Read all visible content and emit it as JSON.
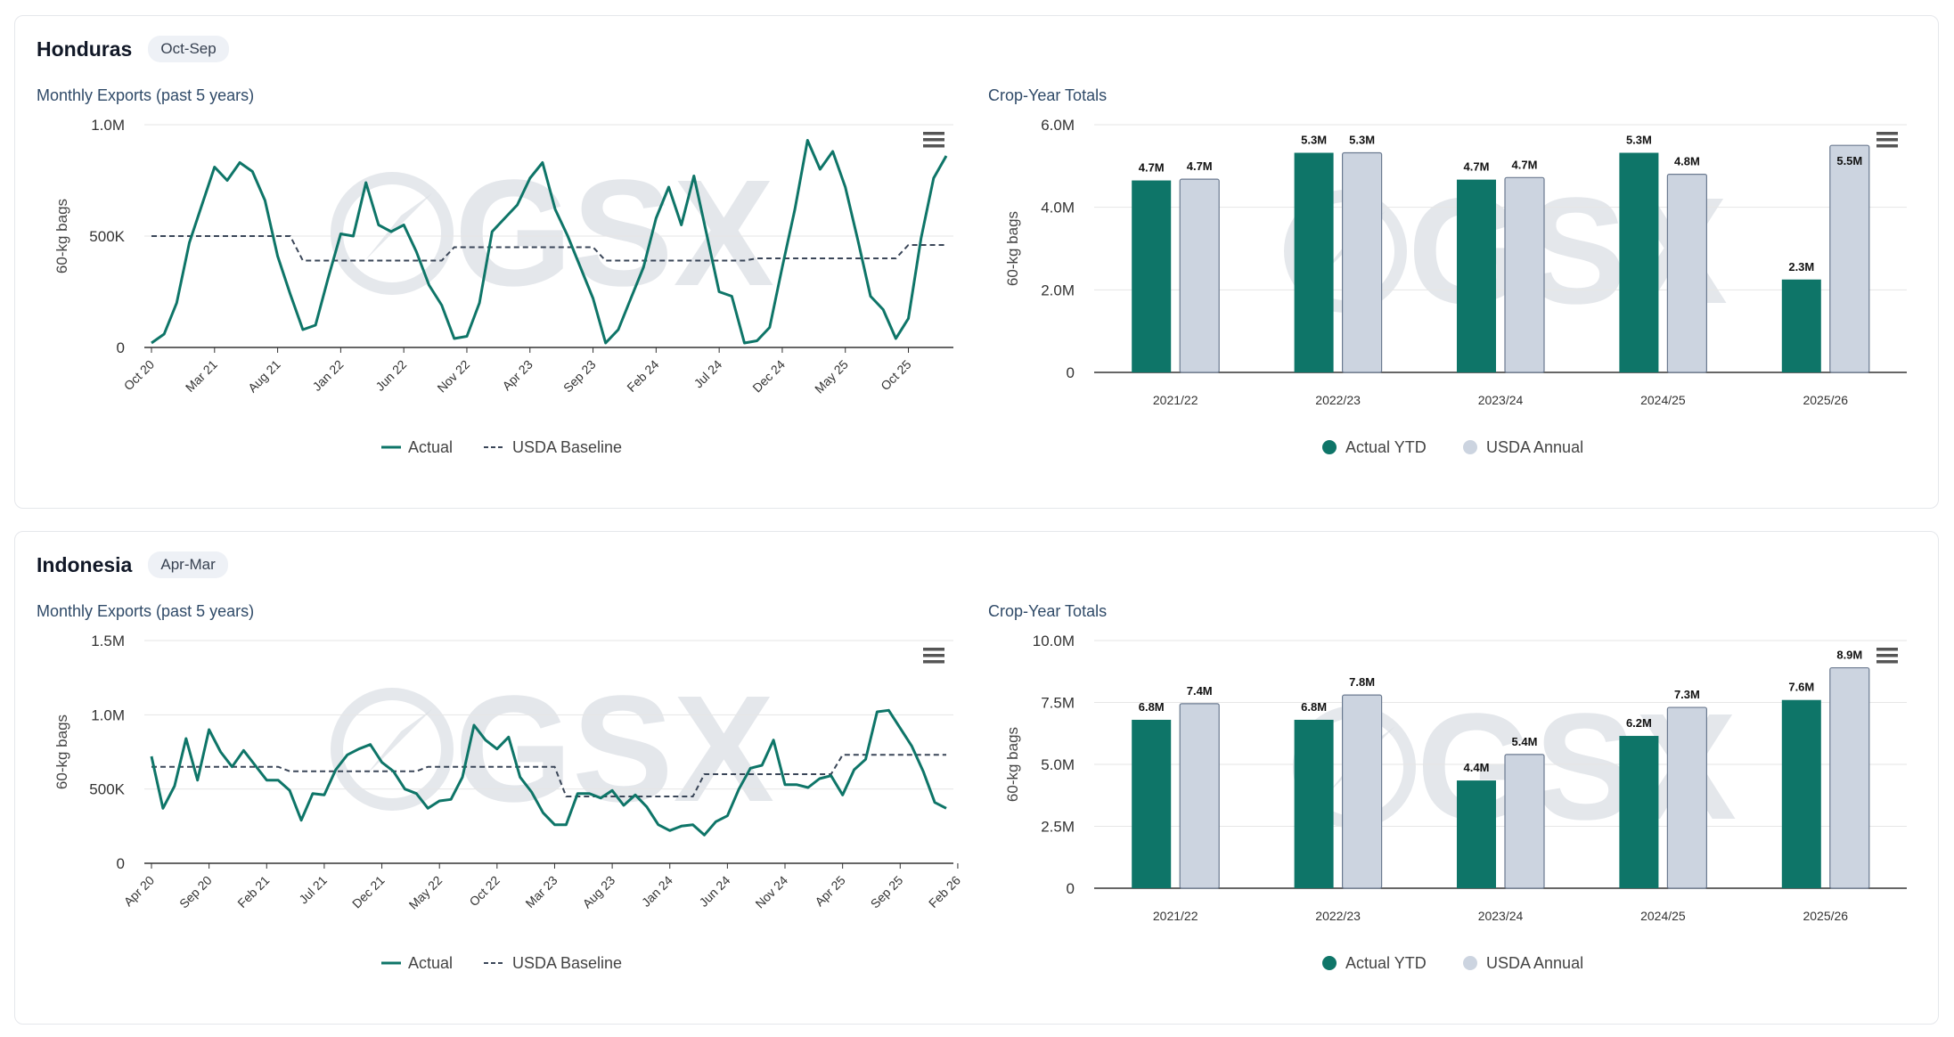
{
  "colors": {
    "actual": "#0e7568",
    "baseline": "#3a4658",
    "usda_bar": "#ccd4e0",
    "grid": "#e6e6e6"
  },
  "icons": {
    "menu": "hamburger-menu-icon",
    "logo": "gsx-logo-watermark"
  },
  "watermark_text": "GSX",
  "cards": [
    {
      "country": "Honduras",
      "season": "Oct-Sep",
      "line_title": "Monthly Exports (past 5 years)",
      "bar_title": "Crop-Year Totals",
      "legend": {
        "actual": "Actual",
        "baseline": "USDA Baseline",
        "bar_actual": "Actual YTD",
        "bar_usda": "USDA Annual"
      }
    },
    {
      "country": "Indonesia",
      "season": "Apr-Mar",
      "line_title": "Monthly Exports (past 5 years)",
      "bar_title": "Crop-Year Totals",
      "legend": {
        "actual": "Actual",
        "baseline": "USDA Baseline",
        "bar_actual": "Actual YTD",
        "bar_usda": "USDA Annual"
      }
    }
  ],
  "chart_data": [
    {
      "type": "line",
      "country": "Honduras",
      "title": "Monthly Exports (past 5 years)",
      "ylabel": "60-kg bags",
      "ylim": [
        0,
        1000000
      ],
      "yticks": [
        {
          "v": 0,
          "label": "0"
        },
        {
          "v": 500000,
          "label": "500K"
        },
        {
          "v": 1000000,
          "label": "1.0M"
        }
      ],
      "xtick_labels": [
        "Oct 20",
        "Mar 21",
        "Aug 21",
        "Jan 22",
        "Jun 22",
        "Nov 22",
        "Apr 23",
        "Sep 23",
        "Feb 24",
        "Jul 24",
        "Dec 24",
        "May 25",
        "Oct 25"
      ],
      "xtick_step": 5,
      "series": [
        {
          "name": "Actual",
          "values": [
            20000,
            60000,
            200000,
            470000,
            640000,
            810000,
            750000,
            830000,
            790000,
            660000,
            410000,
            240000,
            80000,
            100000,
            310000,
            510000,
            500000,
            740000,
            550000,
            520000,
            550000,
            430000,
            280000,
            190000,
            40000,
            50000,
            200000,
            520000,
            580000,
            640000,
            760000,
            830000,
            620000,
            500000,
            360000,
            220000,
            20000,
            80000,
            220000,
            360000,
            580000,
            720000,
            550000,
            770000,
            510000,
            250000,
            230000,
            20000,
            30000,
            90000,
            360000,
            620000,
            930000,
            800000,
            880000,
            720000,
            480000,
            230000,
            170000,
            40000,
            130000,
            490000,
            760000,
            860000
          ]
        },
        {
          "name": "USDA Baseline",
          "values": [
            500000,
            500000,
            500000,
            500000,
            500000,
            500000,
            500000,
            500000,
            500000,
            500000,
            500000,
            500000,
            390000,
            390000,
            390000,
            390000,
            390000,
            390000,
            390000,
            390000,
            390000,
            390000,
            390000,
            390000,
            450000,
            450000,
            450000,
            450000,
            450000,
            450000,
            450000,
            450000,
            450000,
            450000,
            450000,
            450000,
            390000,
            390000,
            390000,
            390000,
            390000,
            390000,
            390000,
            390000,
            390000,
            390000,
            390000,
            390000,
            400000,
            400000,
            400000,
            400000,
            400000,
            400000,
            400000,
            400000,
            400000,
            400000,
            400000,
            400000,
            460000,
            460000,
            460000,
            460000
          ]
        }
      ]
    },
    {
      "type": "bar",
      "country": "Honduras",
      "title": "Crop-Year Totals",
      "ylabel": "60-kg bags",
      "ylim": [
        0,
        6000000
      ],
      "yticks": [
        {
          "v": 0,
          "label": "0"
        },
        {
          "v": 2000000,
          "label": "2.0M"
        },
        {
          "v": 4000000,
          "label": "4.0M"
        },
        {
          "v": 6000000,
          "label": "6.0M"
        }
      ],
      "categories": [
        "2021/22",
        "2022/23",
        "2023/24",
        "2024/25",
        "2025/26"
      ],
      "series": [
        {
          "name": "Actual YTD",
          "values": [
            4650000,
            5320000,
            4670000,
            5320000,
            2250000
          ],
          "labels": [
            "4.7M",
            "5.3M",
            "4.7M",
            "5.3M",
            "2.3M"
          ]
        },
        {
          "name": "USDA Annual",
          "values": [
            4680000,
            5320000,
            4720000,
            4800000,
            5500000
          ],
          "labels": [
            "4.7M",
            "5.3M",
            "4.7M",
            "4.8M",
            "5.5M"
          ]
        }
      ]
    },
    {
      "type": "line",
      "country": "Indonesia",
      "title": "Monthly Exports (past 5 years)",
      "ylabel": "60-kg bags",
      "ylim": [
        0,
        1500000
      ],
      "yticks": [
        {
          "v": 0,
          "label": "0"
        },
        {
          "v": 500000,
          "label": "500K"
        },
        {
          "v": 1000000,
          "label": "1.0M"
        },
        {
          "v": 1500000,
          "label": "1.5M"
        }
      ],
      "xtick_labels": [
        "Apr 20",
        "Sep 20",
        "Feb 21",
        "Jul 21",
        "Dec 21",
        "May 22",
        "Oct 22",
        "Mar 23",
        "Aug 23",
        "Jan 24",
        "Jun 24",
        "Nov 24",
        "Apr 25",
        "Sep 25",
        "Feb 26"
      ],
      "xtick_step": 5,
      "series": [
        {
          "name": "Actual",
          "values": [
            720000,
            370000,
            520000,
            840000,
            560000,
            900000,
            750000,
            650000,
            760000,
            660000,
            560000,
            560000,
            490000,
            290000,
            470000,
            460000,
            630000,
            730000,
            770000,
            800000,
            680000,
            620000,
            500000,
            470000,
            370000,
            420000,
            430000,
            580000,
            930000,
            830000,
            770000,
            850000,
            580000,
            480000,
            340000,
            260000,
            260000,
            470000,
            470000,
            440000,
            490000,
            390000,
            460000,
            380000,
            260000,
            220000,
            250000,
            260000,
            190000,
            280000,
            320000,
            500000,
            640000,
            660000,
            830000,
            530000,
            530000,
            510000,
            570000,
            590000,
            460000,
            630000,
            700000,
            1020000,
            1030000,
            910000,
            790000,
            620000,
            410000,
            370000
          ]
        },
        {
          "name": "USDA Baseline",
          "values": [
            650000,
            650000,
            650000,
            650000,
            650000,
            650000,
            650000,
            650000,
            650000,
            650000,
            650000,
            650000,
            620000,
            620000,
            620000,
            620000,
            620000,
            620000,
            620000,
            620000,
            620000,
            620000,
            620000,
            620000,
            650000,
            650000,
            650000,
            650000,
            650000,
            650000,
            650000,
            650000,
            650000,
            650000,
            650000,
            650000,
            450000,
            450000,
            450000,
            450000,
            450000,
            450000,
            450000,
            450000,
            450000,
            450000,
            450000,
            450000,
            600000,
            600000,
            600000,
            600000,
            600000,
            600000,
            600000,
            600000,
            600000,
            600000,
            600000,
            600000,
            730000,
            730000,
            730000,
            730000,
            730000,
            730000,
            730000,
            730000,
            730000,
            730000
          ]
        }
      ]
    },
    {
      "type": "bar",
      "country": "Indonesia",
      "title": "Crop-Year Totals",
      "ylabel": "60-kg bags",
      "ylim": [
        0,
        10000000
      ],
      "yticks": [
        {
          "v": 0,
          "label": "0"
        },
        {
          "v": 2500000,
          "label": "2.5M"
        },
        {
          "v": 5000000,
          "label": "5.0M"
        },
        {
          "v": 7500000,
          "label": "7.5M"
        },
        {
          "v": 10000000,
          "label": "10.0M"
        }
      ],
      "categories": [
        "2021/22",
        "2022/23",
        "2023/24",
        "2024/25",
        "2025/26"
      ],
      "series": [
        {
          "name": "Actual YTD",
          "values": [
            6800000,
            6800000,
            4350000,
            6150000,
            7600000
          ],
          "labels": [
            "6.8M",
            "6.8M",
            "4.4M",
            "6.2M",
            "7.6M"
          ]
        },
        {
          "name": "USDA Annual",
          "values": [
            7450000,
            7800000,
            5400000,
            7300000,
            8900000
          ],
          "labels": [
            "7.4M",
            "7.8M",
            "5.4M",
            "7.3M",
            "8.9M"
          ]
        }
      ]
    }
  ]
}
